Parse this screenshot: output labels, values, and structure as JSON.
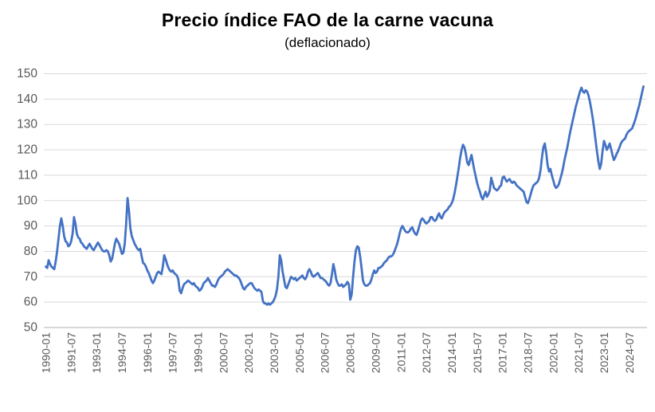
{
  "header": {
    "title": "Precio índice FAO de la carne vacuna",
    "subtitle": "(deflacionado)"
  },
  "chart_data": {
    "type": "line",
    "title": "Precio índice FAO de la carne vacuna",
    "subtitle": "(deflacionado)",
    "x_start": "1990-01",
    "x_frequency": "monthly",
    "x_tick_every_months": 18,
    "x_tick_labels": [
      "1990-01",
      "1991-07",
      "1993-01",
      "1994-07",
      "1996-01",
      "1997-07",
      "1999-01",
      "2000-07",
      "2002-01",
      "2003-07",
      "2005-01",
      "2006-07",
      "2008-01",
      "2009-07",
      "2011-01",
      "2012-07",
      "2014-01",
      "2015-07",
      "2017-01",
      "2018-07",
      "2020-01",
      "2021-07",
      "2023-01",
      "2024-07"
    ],
    "ylim": [
      50,
      150
    ],
    "y_ticks": [
      50,
      60,
      70,
      80,
      90,
      100,
      110,
      120,
      130,
      140,
      150
    ],
    "grid": "horizontal",
    "legend": "none",
    "line_color": "#4472C4",
    "values": [
      74,
      73.5,
      76.5,
      75,
      74,
      73.5,
      73,
      76,
      80,
      85,
      90,
      93,
      90,
      86,
      84,
      83.5,
      82,
      82.5,
      84,
      87,
      93.5,
      91,
      87,
      85.5,
      85,
      83.5,
      83,
      82,
      81.5,
      81,
      82,
      83,
      82,
      81,
      80.5,
      81.5,
      82.5,
      83.5,
      82.5,
      81.5,
      80.5,
      80,
      80,
      80.5,
      80,
      78.5,
      76,
      77,
      80,
      83,
      85,
      84,
      83,
      81,
      79,
      79.5,
      83,
      91,
      101,
      96,
      89,
      86,
      84.5,
      83,
      82,
      81,
      80.5,
      81,
      78,
      75.5,
      75,
      74,
      72.5,
      71.5,
      70,
      68.5,
      67.5,
      68.5,
      70,
      71.5,
      72,
      71.5,
      71,
      74,
      78.5,
      77,
      75,
      73.5,
      72.5,
      72,
      72.5,
      71.5,
      71,
      70.5,
      69,
      64.5,
      63.5,
      65.5,
      67,
      67.5,
      68,
      68.5,
      68,
      67.5,
      67,
      67.5,
      66.5,
      66,
      65.5,
      64.5,
      65,
      66,
      67.5,
      68,
      68.5,
      69.5,
      68.5,
      67.5,
      66.5,
      66.5,
      66,
      67,
      68.5,
      69.5,
      70,
      70.5,
      71,
      72,
      72.5,
      73,
      72.5,
      72,
      71.5,
      71,
      70.5,
      70.5,
      70,
      69.5,
      68.5,
      67,
      65.5,
      65,
      66,
      66.5,
      67,
      67.5,
      67.5,
      66.5,
      65.5,
      65,
      64.5,
      65,
      64.5,
      64,
      60.5,
      59.5,
      59.5,
      59,
      59.5,
      59,
      59.5,
      60,
      61,
      62.5,
      65,
      70,
      78.5,
      76.5,
      72,
      69,
      66,
      65.5,
      67,
      68.5,
      70,
      69.5,
      69,
      69.5,
      68.5,
      69,
      69.5,
      70,
      70.5,
      69.5,
      69,
      70,
      72,
      73,
      72,
      70.5,
      70,
      70.5,
      71,
      71.5,
      70.5,
      69.5,
      69.5,
      69,
      68.5,
      68,
      67,
      66.5,
      67.5,
      71,
      75,
      72.5,
      69,
      67.5,
      66.5,
      66.5,
      67,
      66,
      66.5,
      67,
      68,
      67,
      61,
      63,
      70,
      76,
      80.5,
      82,
      81.5,
      78,
      73.5,
      68.5,
      67,
      66.5,
      66.5,
      67,
      67.5,
      69,
      71,
      72.5,
      71.5,
      72,
      73.5,
      73.5,
      74,
      74.5,
      75.5,
      76,
      76.5,
      77.5,
      78,
      78,
      78.5,
      79.5,
      81,
      82.5,
      84.5,
      87,
      89,
      90,
      89,
      88,
      87.5,
      87.5,
      88,
      89,
      89.5,
      88,
      87,
      86.5,
      88,
      90,
      92,
      93,
      92.5,
      91.5,
      91,
      91.5,
      92,
      93.5,
      93.5,
      92.5,
      92,
      92.5,
      94,
      95,
      93.5,
      93,
      94.5,
      95.5,
      96,
      96.5,
      97.5,
      98,
      99,
      100.5,
      103,
      106,
      109.5,
      113,
      117,
      120,
      122,
      121,
      118.5,
      115,
      114,
      116,
      118,
      115,
      112,
      109.5,
      107,
      105,
      103.5,
      101.5,
      100.5,
      102,
      103.5,
      101.5,
      102.5,
      104,
      109,
      107,
      105,
      104.5,
      104,
      104.5,
      105.5,
      106,
      109,
      109.5,
      108.5,
      107.5,
      108,
      108.5,
      107.5,
      107,
      107.5,
      107,
      106,
      105.5,
      105,
      104.5,
      104,
      103.5,
      101.5,
      99.5,
      99,
      100.5,
      102.5,
      104.5,
      106,
      106.5,
      107,
      107.5,
      109,
      112,
      117,
      121,
      122.5,
      119,
      114,
      111.5,
      112.5,
      110,
      108,
      106,
      105,
      105.5,
      106.5,
      108.5,
      110.5,
      113,
      116,
      118.5,
      121,
      124,
      127,
      129.5,
      132,
      134.5,
      137,
      139,
      141,
      143,
      144.5,
      143,
      142.5,
      143.5,
      143,
      141.5,
      139,
      136,
      132.5,
      128.5,
      124,
      119.5,
      115.5,
      112.5,
      114.5,
      119.5,
      123.5,
      122,
      120,
      121,
      122.5,
      120.5,
      118,
      116,
      117,
      118.5,
      119.5,
      121,
      122.5,
      123.5,
      124,
      124.5,
      126,
      127,
      127.5,
      128,
      128.5,
      130,
      131.5,
      133.5,
      135.5,
      137.5,
      140,
      142.5,
      145
    ]
  }
}
